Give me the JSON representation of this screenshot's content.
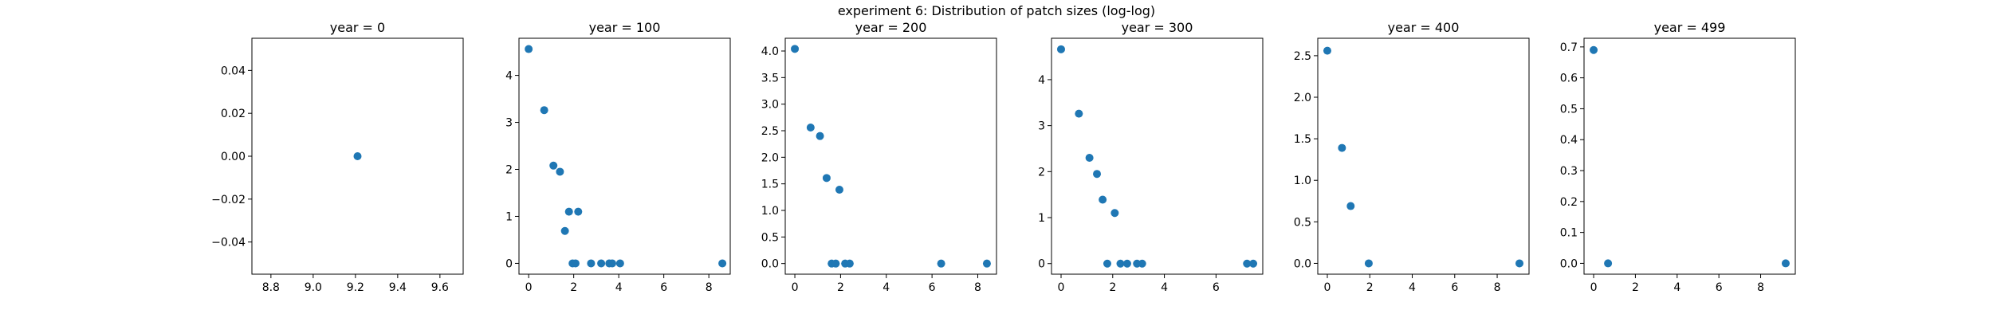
{
  "figure": {
    "suptitle": "experiment 6: Distribution of patch sizes (log-log)"
  },
  "colors": {
    "marker": "#1f77b4",
    "axes": "#000000",
    "background": "#ffffff"
  },
  "chart_data": [
    {
      "type": "scatter",
      "title": "year = 0",
      "xlabel": "",
      "ylabel": "",
      "xlim": [
        8.71,
        9.71
      ],
      "ylim": [
        -0.055,
        0.055
      ],
      "xticks": [
        8.8,
        9.0,
        9.2,
        9.4,
        9.6
      ],
      "xtick_labels": [
        "8.8",
        "9.0",
        "9.2",
        "9.4",
        "9.6"
      ],
      "yticks": [
        -0.04,
        -0.02,
        0.0,
        0.02,
        0.04
      ],
      "ytick_labels": [
        "−0.04",
        "−0.02",
        "0.00",
        "0.02",
        "0.04"
      ],
      "points": [
        [
          9.21,
          0.0
        ]
      ],
      "grid": false,
      "legend": "none"
    },
    {
      "type": "scatter",
      "title": "year = 100",
      "xlabel": "",
      "ylabel": "",
      "xlim": [
        -0.43,
        8.95
      ],
      "ylim": [
        -0.23,
        4.79
      ],
      "xticks": [
        0,
        2,
        4,
        6,
        8
      ],
      "xtick_labels": [
        "0",
        "2",
        "4",
        "6",
        "8"
      ],
      "yticks": [
        0,
        1,
        2,
        3,
        4
      ],
      "ytick_labels": [
        "0",
        "1",
        "2",
        "3",
        "4"
      ],
      "points": [
        [
          0.0,
          4.56
        ],
        [
          0.69,
          3.26
        ],
        [
          1.1,
          2.08
        ],
        [
          1.39,
          1.95
        ],
        [
          1.61,
          0.69
        ],
        [
          1.79,
          1.1
        ],
        [
          1.95,
          0.0
        ],
        [
          2.08,
          0.0
        ],
        [
          2.2,
          1.1
        ],
        [
          2.77,
          0.0
        ],
        [
          3.22,
          0.0
        ],
        [
          3.58,
          0.0
        ],
        [
          3.71,
          0.0
        ],
        [
          4.06,
          0.0
        ],
        [
          8.6,
          0.0
        ]
      ],
      "grid": false,
      "legend": "none"
    },
    {
      "type": "scatter",
      "title": "year = 200",
      "xlabel": "",
      "ylabel": "",
      "xlim": [
        -0.42,
        8.82
      ],
      "ylim": [
        -0.2,
        4.24
      ],
      "xticks": [
        0,
        2,
        4,
        6,
        8
      ],
      "xtick_labels": [
        "0",
        "2",
        "4",
        "6",
        "8"
      ],
      "yticks": [
        0.0,
        0.5,
        1.0,
        1.5,
        2.0,
        2.5,
        3.0,
        3.5,
        4.0
      ],
      "ytick_labels": [
        "0.0",
        "0.5",
        "1.0",
        "1.5",
        "2.0",
        "2.5",
        "3.0",
        "3.5",
        "4.0"
      ],
      "points": [
        [
          0.0,
          4.04
        ],
        [
          0.69,
          2.56
        ],
        [
          1.1,
          2.4
        ],
        [
          1.39,
          1.61
        ],
        [
          1.61,
          0.0
        ],
        [
          1.79,
          0.0
        ],
        [
          1.95,
          1.39
        ],
        [
          2.2,
          0.0
        ],
        [
          2.4,
          0.0
        ],
        [
          6.4,
          0.0
        ],
        [
          8.4,
          0.0
        ]
      ],
      "grid": false,
      "legend": "none"
    },
    {
      "type": "scatter",
      "title": "year = 300",
      "xlabel": "",
      "ylabel": "",
      "xlim": [
        -0.37,
        7.81
      ],
      "ylim": [
        -0.23,
        4.9
      ],
      "xticks": [
        0,
        2,
        4,
        6
      ],
      "xtick_labels": [
        "0",
        "2",
        "4",
        "6"
      ],
      "yticks": [
        0,
        1,
        2,
        3,
        4
      ],
      "ytick_labels": [
        "0",
        "1",
        "2",
        "3",
        "4"
      ],
      "points": [
        [
          0.0,
          4.66
        ],
        [
          0.69,
          3.26
        ],
        [
          1.1,
          2.3
        ],
        [
          1.39,
          1.95
        ],
        [
          1.61,
          1.39
        ],
        [
          1.79,
          0.0
        ],
        [
          2.08,
          1.1
        ],
        [
          2.3,
          0.0
        ],
        [
          2.56,
          0.0
        ],
        [
          2.94,
          0.0
        ],
        [
          3.14,
          0.0
        ],
        [
          7.2,
          0.0
        ],
        [
          7.44,
          0.0
        ]
      ],
      "grid": false,
      "legend": "none"
    },
    {
      "type": "scatter",
      "title": "year = 400",
      "xlabel": "",
      "ylabel": "",
      "xlim": [
        -0.45,
        9.5
      ],
      "ylim": [
        -0.13,
        2.71
      ],
      "xticks": [
        0,
        2,
        4,
        6,
        8
      ],
      "xtick_labels": [
        "0",
        "2",
        "4",
        "6",
        "8"
      ],
      "yticks": [
        0.0,
        0.5,
        1.0,
        1.5,
        2.0,
        2.5
      ],
      "ytick_labels": [
        "0.0",
        "0.5",
        "1.0",
        "1.5",
        "2.0",
        "2.5"
      ],
      "points": [
        [
          0.0,
          2.56
        ],
        [
          0.69,
          1.39
        ],
        [
          1.1,
          0.69
        ],
        [
          1.95,
          0.0
        ],
        [
          9.05,
          0.0
        ]
      ],
      "grid": false,
      "legend": "none"
    },
    {
      "type": "scatter",
      "title": "year = 499",
      "xlabel": "",
      "ylabel": "",
      "xlim": [
        -0.46,
        9.66
      ],
      "ylim": [
        -0.035,
        0.728
      ],
      "xticks": [
        0,
        2,
        4,
        6,
        8
      ],
      "xtick_labels": [
        "0",
        "2",
        "4",
        "6",
        "8"
      ],
      "yticks": [
        0.0,
        0.1,
        0.2,
        0.3,
        0.4,
        0.5,
        0.6,
        0.7
      ],
      "ytick_labels": [
        "0.0",
        "0.1",
        "0.2",
        "0.3",
        "0.4",
        "0.5",
        "0.6",
        "0.7"
      ],
      "points": [
        [
          0.0,
          0.69
        ],
        [
          0.69,
          0.0
        ],
        [
          9.2,
          0.0
        ]
      ],
      "grid": false,
      "legend": "none"
    }
  ]
}
